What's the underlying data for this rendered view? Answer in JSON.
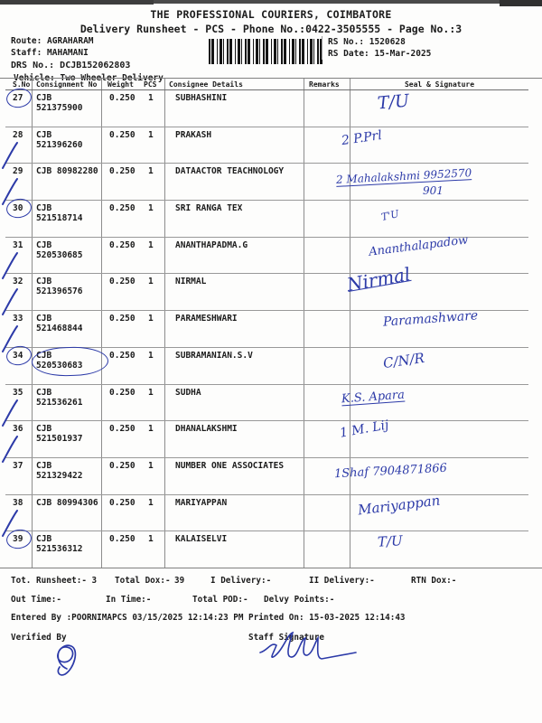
{
  "ink": "#2c3aa8",
  "titles": {
    "company": "THE PROFESSIONAL COURIERS, COIMBATORE",
    "runsheet": "Delivery Runsheet - PCS - Phone No.:0422-3505555 - Page No.:3"
  },
  "header": {
    "route": "Route: AGRAHARAM",
    "staff": "Staff: MAHAMANI",
    "drs": "DRS No.: DCJB152062803",
    "vehicle": "Vehicle: Two Wheeler Delivery",
    "rs_no": "RS No.: 1520628",
    "rs_date": "RS Date: 15-Mar-2025",
    "barcode": "barcode"
  },
  "table": {
    "columns": [
      "S.No",
      "Consignment No",
      "Weight",
      "PCS",
      "Consignee Details",
      "Remarks",
      "Seal & Signature"
    ],
    "rows": [
      {
        "sno": "27",
        "consignment": "CJB 521375900",
        "weight": "0.250",
        "pcs": "1",
        "consignee": "SUBHASHINI",
        "remarks": "",
        "mark": "circle",
        "signature": "T/U"
      },
      {
        "sno": "28",
        "consignment": "CJB 521396260",
        "weight": "0.250",
        "pcs": "1",
        "consignee": "PRAKASH",
        "remarks": "",
        "mark": "tick",
        "signature": "2  P.Prl"
      },
      {
        "sno": "29",
        "consignment": "CJB 80982280",
        "weight": "0.250",
        "pcs": "1",
        "consignee": "DATAACTOR TEACHNOLOGY",
        "remarks": "",
        "mark": "tick",
        "signature": "2 Mahalakshmi 9952570",
        "signature_extra": "901"
      },
      {
        "sno": "30",
        "consignment": "CJB 521518714",
        "weight": "0.250",
        "pcs": "1",
        "consignee": "SRI RANGA TEX",
        "remarks": "",
        "mark": "circle",
        "signature": "T'U"
      },
      {
        "sno": "31",
        "consignment": "CJB 520530685",
        "weight": "0.250",
        "pcs": "1",
        "consignee": "ANANTHAPADMA.G",
        "remarks": "",
        "mark": "tick",
        "signature": "Ananthalapadow"
      },
      {
        "sno": "32",
        "consignment": "CJB 521396576",
        "weight": "0.250",
        "pcs": "1",
        "consignee": "NIRMAL",
        "remarks": "",
        "mark": "tick",
        "signature": "Nirmal"
      },
      {
        "sno": "33",
        "consignment": "CJB 521468844",
        "weight": "0.250",
        "pcs": "1",
        "consignee": "PARAMESHWARI",
        "remarks": "",
        "mark": "tick",
        "signature": "Paramashware"
      },
      {
        "sno": "34",
        "consignment": "CJB 520530683",
        "weight": "0.250",
        "pcs": "1",
        "consignee": "SUBRAMANIAN.S.V",
        "remarks": "",
        "mark": "circle",
        "consignment_circled": true,
        "signature": "C/N/R"
      },
      {
        "sno": "35",
        "consignment": "CJB 521536261",
        "weight": "0.250",
        "pcs": "1",
        "consignee": "SUDHA",
        "remarks": "",
        "mark": "tick",
        "signature": "K.S. Apara"
      },
      {
        "sno": "36",
        "consignment": "CJB 521501937",
        "weight": "0.250",
        "pcs": "1",
        "consignee": "DHANALAKSHMI",
        "remarks": "",
        "mark": "tick",
        "signature": "1 M. Lij"
      },
      {
        "sno": "37",
        "consignment": "CJB 521329422",
        "weight": "0.250",
        "pcs": "1",
        "consignee": "NUMBER ONE ASSOCIATES",
        "remarks": "",
        "mark": "none",
        "signature": "1Shaf  7904871866"
      },
      {
        "sno": "38",
        "consignment": "CJB 80994306",
        "weight": "0.250",
        "pcs": "1",
        "consignee": "MARIYAPPAN",
        "remarks": "",
        "mark": "tick",
        "signature": "Mariyappan"
      },
      {
        "sno": "39",
        "consignment": "CJB 521536312",
        "weight": "0.250",
        "pcs": "1",
        "consignee": "KALAISELVI",
        "remarks": "",
        "mark": "circle",
        "signature": "T/U"
      }
    ]
  },
  "footer": {
    "tot_runsheet": "Tot. Runsheet:- 3",
    "total_dox_label": "Total Dox:-",
    "total_dox_value": "39",
    "i_delivery": "I Delivery:-",
    "ii_delivery": "II Delivery:-",
    "rtn_dox": "RTN Dox:-",
    "out_time": "Out Time:-",
    "in_time": "In Time:-",
    "total_pod": "Total POD:-",
    "delvy_points": "Delvy Points:-",
    "entered_by": "Entered By :POORNIMAPCS 03/15/2025 12:14:23 PM",
    "printed_on": "Printed On: 15-03-2025 12:14:43",
    "verified_by": "Verified By",
    "staff_signature": "Staff Signature"
  }
}
